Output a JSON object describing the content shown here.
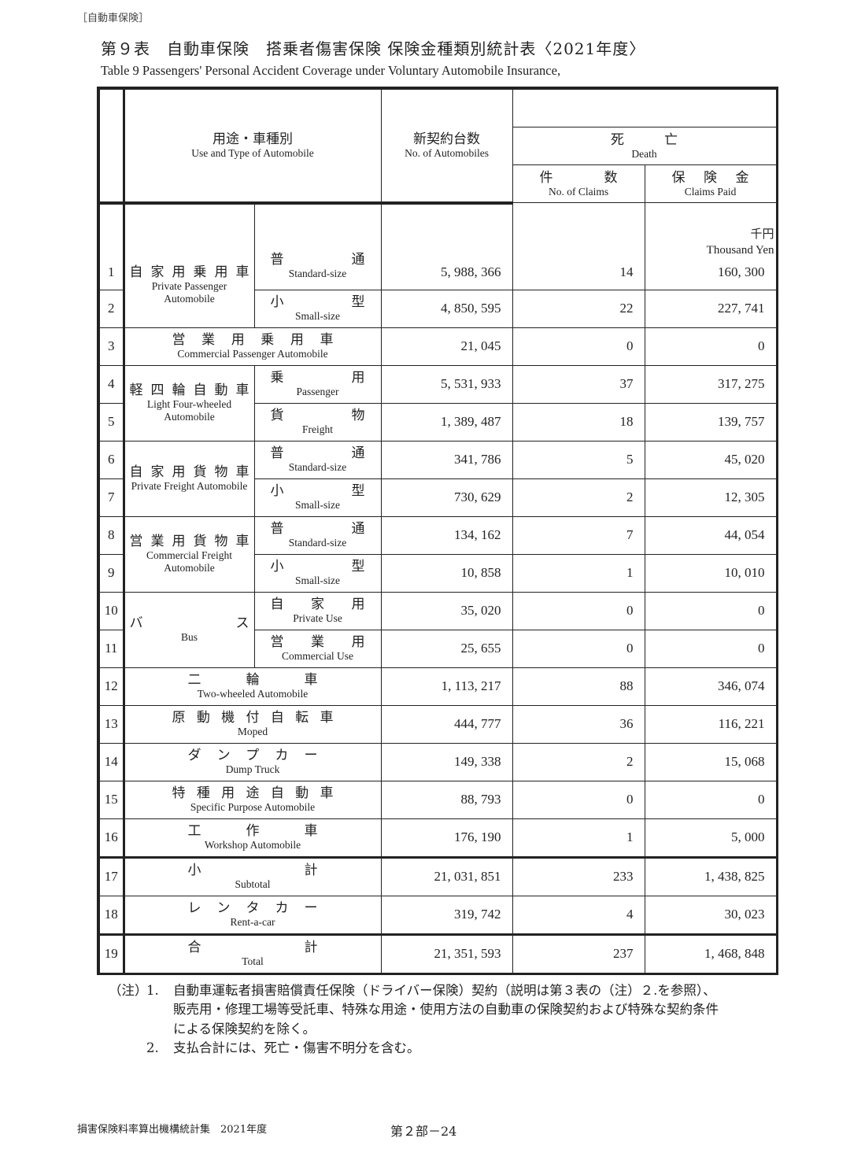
{
  "section_tag": "［自動車保険］",
  "title_jp": "第９表　自動車保険　搭乗者傷害保険 保険金種類別統計表〈2021年度〉",
  "title_en": "Table 9  Passengers' Personal Accident Coverage under Voluntary Automobile Insurance,",
  "headers": {
    "use_type_jp": "用途・車種別",
    "use_type_en": "Use and Type of Automobile",
    "automobiles_jp": "新契約台数",
    "automobiles_en": "No. of Automobiles",
    "death_jp": "死　　　亡",
    "death_en": "Death",
    "claims_jp": "件数",
    "claims_en": "No. of Claims",
    "paid_jp": "保険金",
    "paid_en": "Claims Paid",
    "unit_jp": "千円",
    "unit_en": "Thousand Yen"
  },
  "groups": [
    {
      "jp": "自家用乗用車",
      "en": "Private Passenger Automobile",
      "subs": [
        {
          "jp": "普通",
          "en": "Standard-size"
        },
        {
          "jp": "小型",
          "en": "Small-size"
        }
      ]
    },
    {
      "jp": "営業用乗用車",
      "en": "Commercial Passenger Automobile"
    },
    {
      "jp": "軽四輪自動車",
      "en": "Light Four-wheeled Automobile",
      "subs": [
        {
          "jp": "乗用",
          "en": "Passenger"
        },
        {
          "jp": "貨物",
          "en": "Freight"
        }
      ]
    },
    {
      "jp": "自家用貨物車",
      "en": "Private Freight Automobile",
      "subs": [
        {
          "jp": "普通",
          "en": "Standard-size"
        },
        {
          "jp": "小型",
          "en": "Small-size"
        }
      ]
    },
    {
      "jp": "営業用貨物車",
      "en": "Commercial Freight Automobile",
      "subs": [
        {
          "jp": "普通",
          "en": "Standard-size"
        },
        {
          "jp": "小型",
          "en": "Small-size"
        }
      ]
    },
    {
      "jp": "バス",
      "en": "Bus",
      "subs": [
        {
          "jp": "自家用",
          "en": "Private Use"
        },
        {
          "jp": "営業用",
          "en": "Commercial Use"
        }
      ]
    },
    {
      "jp": "二輪車",
      "en": "Two-wheeled Automobile"
    },
    {
      "jp": "原動機付自転車",
      "en": "Moped"
    },
    {
      "jp": "ダンプカー",
      "en": "Dump Truck"
    },
    {
      "jp": "特種用途自動車",
      "en": "Specific Purpose Automobile"
    },
    {
      "jp": "工作車",
      "en": "Workshop Automobile"
    },
    {
      "jp": "小計",
      "en": "Subtotal"
    },
    {
      "jp": "レンタカー",
      "en": "Rent-a-car"
    },
    {
      "jp": "合計",
      "en": "Total"
    }
  ],
  "rows": [
    {
      "no": "1",
      "automobiles": "5, 988, 366",
      "claims": "14",
      "paid": "160, 300"
    },
    {
      "no": "2",
      "automobiles": "4, 850, 595",
      "claims": "22",
      "paid": "227, 741"
    },
    {
      "no": "3",
      "automobiles": "21, 045",
      "claims": "0",
      "paid": "0"
    },
    {
      "no": "4",
      "automobiles": "5, 531, 933",
      "claims": "37",
      "paid": "317, 275"
    },
    {
      "no": "5",
      "automobiles": "1, 389, 487",
      "claims": "18",
      "paid": "139, 757"
    },
    {
      "no": "6",
      "automobiles": "341, 786",
      "claims": "5",
      "paid": "45, 020"
    },
    {
      "no": "7",
      "automobiles": "730, 629",
      "claims": "2",
      "paid": "12, 305"
    },
    {
      "no": "8",
      "automobiles": "134, 162",
      "claims": "7",
      "paid": "44, 054"
    },
    {
      "no": "9",
      "automobiles": "10, 858",
      "claims": "1",
      "paid": "10, 010"
    },
    {
      "no": "10",
      "automobiles": "35, 020",
      "claims": "0",
      "paid": "0"
    },
    {
      "no": "11",
      "automobiles": "25, 655",
      "claims": "0",
      "paid": "0"
    },
    {
      "no": "12",
      "automobiles": "1, 113, 217",
      "claims": "88",
      "paid": "346, 074"
    },
    {
      "no": "13",
      "automobiles": "444, 777",
      "claims": "36",
      "paid": "116, 221"
    },
    {
      "no": "14",
      "automobiles": "149, 338",
      "claims": "2",
      "paid": "15, 068"
    },
    {
      "no": "15",
      "automobiles": "88, 793",
      "claims": "0",
      "paid": "0"
    },
    {
      "no": "16",
      "automobiles": "176, 190",
      "claims": "1",
      "paid": "5, 000"
    },
    {
      "no": "17",
      "automobiles": "21, 031, 851",
      "claims": "233",
      "paid": "1, 438, 825"
    },
    {
      "no": "18",
      "automobiles": "319, 742",
      "claims": "4",
      "paid": "30, 023"
    },
    {
      "no": "19",
      "automobiles": "21, 351, 593",
      "claims": "237",
      "paid": "1, 468, 848"
    }
  ],
  "notes": {
    "label": "（注）",
    "items": [
      {
        "n": "1.",
        "lines": [
          "自動車運転者損害賠償責任保険（ドライバー保険）契約（説明は第３表の（注）２.を参照）、",
          "販売用・修理工場等受託車、特殊な用途・使用方法の自動車の保険契約および特殊な契約条件",
          "による保険契約を除く。"
        ]
      },
      {
        "n": "2.",
        "lines": [
          "支払合計には、死亡・傷害不明分を含む。"
        ]
      }
    ]
  },
  "footer": {
    "left": "損害保険料率算出機構統計集　2021年度",
    "page": "第２部－24"
  }
}
